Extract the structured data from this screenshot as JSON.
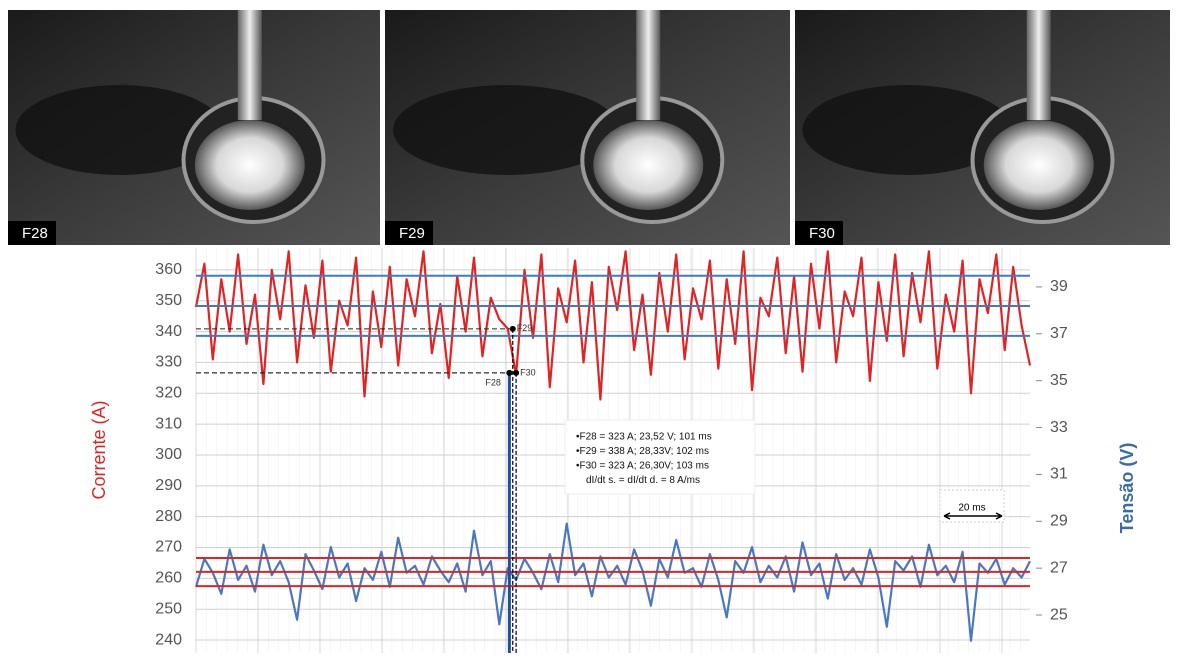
{
  "photos": [
    {
      "label": "F28"
    },
    {
      "label": "F29"
    },
    {
      "label": "F30"
    }
  ],
  "chart_data": {
    "type": "line",
    "ylabel": "Corrente (A)",
    "y2label": "Tensão (V)",
    "ylim": [
      235.8,
      367.1
    ],
    "yticks": [
      240,
      250,
      260,
      270,
      280,
      290,
      300,
      310,
      320,
      330,
      340,
      350,
      360
    ],
    "y2lim": [
      23.38,
      40.66
    ],
    "y2ticks": [
      25,
      27,
      29,
      31,
      33,
      35,
      37,
      39
    ],
    "grid": true,
    "series": [
      {
        "name": "Corrente",
        "color": "#e02424",
        "values": [
          348,
          362,
          331,
          357,
          340,
          365,
          336,
          352,
          323,
          360,
          344,
          366,
          330,
          355,
          338,
          363,
          327,
          350,
          342,
          364,
          319,
          353,
          335,
          361,
          329,
          357,
          345,
          366,
          333,
          349,
          325,
          358,
          340,
          364,
          332,
          351,
          344,
          341,
          326,
          360,
          338,
          365,
          322,
          354,
          343,
          363,
          330,
          356,
          318,
          361,
          347,
          366,
          334,
          352,
          326,
          359,
          340,
          365,
          331,
          354,
          344,
          363,
          328,
          357,
          336,
          366,
          321,
          351,
          345,
          364,
          333,
          358,
          327,
          362,
          341,
          366,
          330,
          353,
          345,
          364,
          324,
          356,
          337,
          365,
          332,
          359,
          343,
          366,
          328,
          352,
          340,
          363,
          320,
          357,
          346,
          365,
          334,
          361,
          342,
          329
        ]
      },
      {
        "name": "Tensão",
        "color": "#4a78c0",
        "axis": "y2",
        "values": [
          26.2,
          27.4,
          26.8,
          25.9,
          27.8,
          26.5,
          27.1,
          26.0,
          28.0,
          26.7,
          27.3,
          26.4,
          24.8,
          27.6,
          26.9,
          26.1,
          27.9,
          26.6,
          27.2,
          25.6,
          27.0,
          26.5,
          27.7,
          26.2,
          28.3,
          26.8,
          27.1,
          26.3,
          27.5,
          26.9,
          26.4,
          27.2,
          26.0,
          28.6,
          26.7,
          27.3,
          24.6,
          27.0,
          26.5,
          27.4,
          26.8,
          26.1,
          27.6,
          26.4,
          28.9,
          26.7,
          27.2,
          25.8,
          27.5,
          26.6,
          27.1,
          26.3,
          27.8,
          26.9,
          25.4,
          27.4,
          26.6,
          28.2,
          26.8,
          27.0,
          26.2,
          27.6,
          26.5,
          24.9,
          27.3,
          26.8,
          27.9,
          26.4,
          27.1,
          26.6,
          27.5,
          26.0,
          28.1,
          26.7,
          27.2,
          25.7,
          27.6,
          26.5,
          27.0,
          26.3,
          27.8,
          26.6,
          24.5,
          27.3,
          26.9,
          27.5,
          26.2,
          28.0,
          26.7,
          27.1,
          26.4,
          27.7,
          23.9,
          27.2,
          26.8,
          27.4,
          26.3,
          27.0,
          26.6,
          27.3
        ]
      }
    ],
    "hlines": [
      {
        "value": 358.1,
        "color": "#3a7cc8"
      },
      {
        "value": 348.3,
        "color": "#3a7cc8"
      },
      {
        "value": 338.6,
        "color": "#3a7cc8"
      },
      {
        "value": 266.6,
        "color": "#e02424"
      },
      {
        "value": 262.1,
        "color": "#e02424"
      },
      {
        "value": 257.5,
        "color": "#e02424"
      }
    ],
    "markers": [
      {
        "label": "F28",
        "x": 37.2,
        "y": 326.6,
        "color": "#1f4fa0"
      },
      {
        "label": "F29",
        "x": 37.6,
        "y": 340.9,
        "color": "#000000"
      },
      {
        "label": "F30",
        "x": 38.0,
        "y": 326.6,
        "color": "#000000"
      }
    ],
    "annotation": [
      "•F28 = 323 A; 23,52 V; 101 ms",
      "•F29 = 338 A; 28,33V; 102 ms",
      "•F30 = 323 A; 26,30V; 103 ms",
      "dI/dt s. = dI/dt d. = 8 A/ms"
    ],
    "scale_bar": "20 ms"
  }
}
